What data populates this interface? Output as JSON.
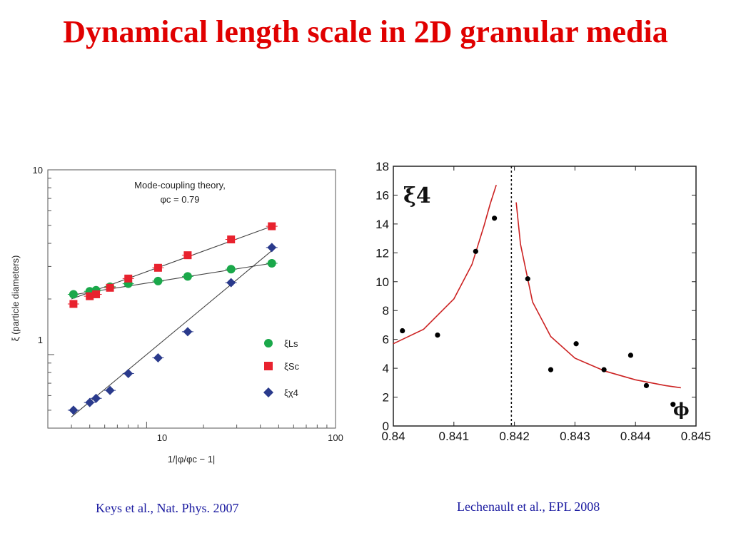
{
  "slide": {
    "title": "Dynamical length scale in 2D granular media",
    "citation_left": "Keys et al., Nat. Phys. 2007",
    "citation_right": "Lechenault et al., EPL 2008",
    "title_color": "#e00000",
    "citation_color": "#1a1aa0"
  },
  "chart_data": [
    {
      "type": "scatter",
      "scale": "log-log",
      "xlabel": "1/|φ/φc − 1|",
      "ylabel": "ξ (particle diameters)",
      "xlim": [
        3,
        100
      ],
      "ylim": [
        0.4,
        10
      ],
      "x_tick_labels": [
        "10",
        "100"
      ],
      "y_tick_labels": [
        "1",
        "10"
      ],
      "annotation_line1": "Mode-coupling theory,",
      "annotation_line2": "φc = 0.79",
      "legend_position": "lower-right",
      "series": [
        {
          "name": "ξLs",
          "color": "#1aa84a",
          "marker": "circle",
          "x": [
            4.1,
            5.0,
            5.4,
            6.4,
            8.0,
            11.5,
            16.5,
            28.0,
            46.0
          ],
          "y": [
            2.12,
            2.2,
            2.23,
            2.33,
            2.42,
            2.5,
            2.65,
            2.9,
            3.12
          ],
          "fit": [
            [
              4.0,
              2.1
            ],
            [
              46.0,
              3.12
            ]
          ]
        },
        {
          "name": "ξSc",
          "color": "#e8222e",
          "marker": "square",
          "x": [
            4.1,
            5.0,
            5.4,
            6.4,
            8.0,
            11.5,
            16.5,
            28.0,
            46.0
          ],
          "y": [
            1.88,
            2.07,
            2.12,
            2.3,
            2.58,
            2.95,
            3.45,
            4.2,
            4.95
          ],
          "fit": [
            [
              4.0,
              2.0
            ],
            [
              46.0,
              4.95
            ]
          ]
        },
        {
          "name": "ξχ4",
          "color": "#2a3a8c",
          "marker": "diamond",
          "x": [
            4.1,
            5.0,
            5.4,
            6.4,
            8.0,
            11.5,
            16.5,
            28.0,
            46.0
          ],
          "y": [
            0.5,
            0.55,
            0.58,
            0.64,
            0.79,
            0.96,
            1.33,
            2.45,
            3.8
          ],
          "fit": [
            [
              4.0,
              0.46
            ],
            [
              46.0,
              3.65
            ]
          ]
        }
      ]
    },
    {
      "type": "scatter",
      "xlim": [
        0.84,
        0.845
      ],
      "ylim": [
        0,
        18
      ],
      "xlabel": "ϕ",
      "ylabel": "ξ4",
      "x_tick_labels": [
        "0.84",
        "0.841",
        "0.842",
        "0.843",
        "0.844",
        "0.845"
      ],
      "y_tick_labels": [
        "0",
        "2",
        "4",
        "6",
        "8",
        "10",
        "12",
        "14",
        "16",
        "18"
      ],
      "critical_line_x": 0.84195,
      "points": {
        "x": [
          0.84015,
          0.84073,
          0.84136,
          0.84167,
          0.84222,
          0.8426,
          0.84302,
          0.84348,
          0.84392,
          0.84418,
          0.84462
        ],
        "y": [
          6.6,
          6.3,
          12.1,
          14.4,
          10.2,
          3.9,
          5.7,
          3.9,
          4.9,
          2.8,
          1.5
        ]
      },
      "curve_left": {
        "color": "#cc2222",
        "x": [
          0.84,
          0.8405,
          0.841,
          0.8413,
          0.8415,
          0.8416,
          0.8417
        ],
        "y": [
          5.7,
          6.7,
          8.8,
          11.2,
          13.9,
          15.4,
          16.7
        ]
      },
      "curve_right": {
        "color": "#cc2222",
        "x": [
          0.84203,
          0.8421,
          0.8423,
          0.8426,
          0.843,
          0.8435,
          0.844,
          0.8445,
          0.84475
        ],
        "y": [
          15.5,
          12.6,
          8.6,
          6.2,
          4.7,
          3.8,
          3.2,
          2.8,
          2.65
        ]
      }
    }
  ]
}
